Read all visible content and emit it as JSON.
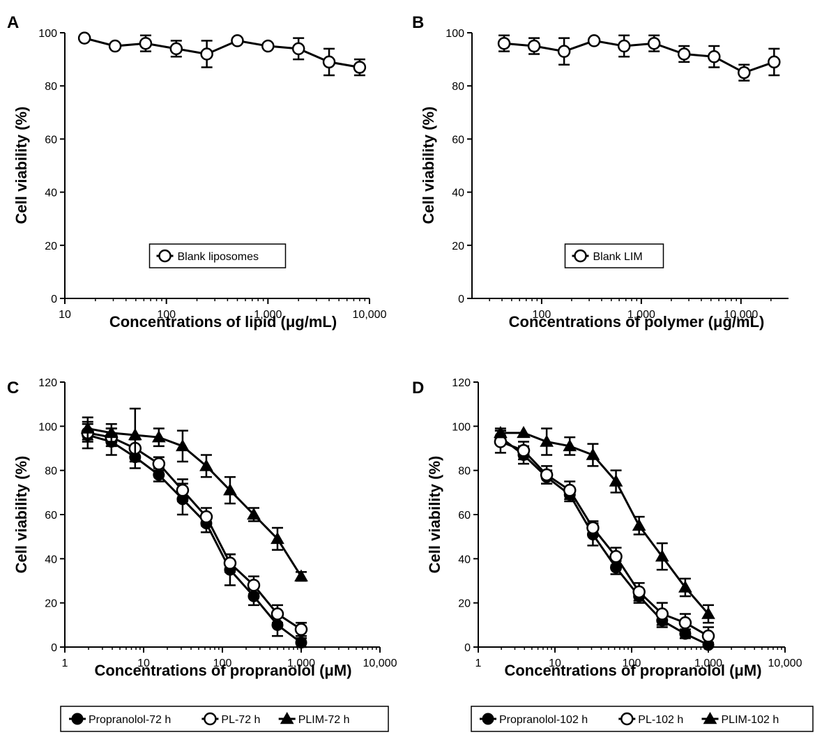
{
  "chart_data": [
    {
      "panel": "A",
      "type": "line",
      "xscale": "log",
      "xlim": [
        10,
        10000
      ],
      "ylim": [
        0,
        100
      ],
      "xticks": [
        10,
        100,
        1000,
        10000
      ],
      "xticklabels": [
        "10",
        "100",
        "1,000",
        "10,000"
      ],
      "yticks": [
        0,
        20,
        40,
        60,
        80,
        100
      ],
      "yticklabels": [
        "0",
        "20",
        "40",
        "60",
        "80",
        "100"
      ],
      "xlabel": "Concentrations of lipid (μg/mL)",
      "ylabel": "Cell viability (%)",
      "legend_position": "bottom-center-inside",
      "grid": false,
      "series": [
        {
          "name": "Blank liposomes",
          "marker": "open-circle",
          "x": [
            15.6,
            31.25,
            62.5,
            125,
            250,
            500,
            1000,
            2000,
            4000,
            8000
          ],
          "y": [
            98,
            95,
            96,
            94,
            92,
            97,
            95,
            94,
            89,
            87
          ],
          "err": [
            0,
            0,
            3,
            3,
            5,
            0,
            0,
            4,
            5,
            3
          ]
        }
      ]
    },
    {
      "panel": "B",
      "type": "line",
      "xscale": "log",
      "xlim": [
        20,
        30000
      ],
      "ylim": [
        0,
        100
      ],
      "xticks": [
        100,
        1000,
        10000
      ],
      "xticklabels": [
        "100",
        "1,000",
        "10,000"
      ],
      "yticks": [
        0,
        20,
        40,
        60,
        80,
        100
      ],
      "yticklabels": [
        "0",
        "20",
        "40",
        "60",
        "80",
        "100"
      ],
      "xlabel": "Concentrations of polymer (μg/mL)",
      "ylabel": "Cell viability (%)",
      "legend_position": "bottom-center-inside",
      "grid": false,
      "series": [
        {
          "name": "Blank LIM",
          "marker": "open-circle",
          "x": [
            42,
            84,
            168,
            336,
            672,
            1344,
            2688,
            5376,
            10752,
            21504
          ],
          "y": [
            96,
            95,
            93,
            97,
            95,
            96,
            92,
            91,
            85,
            89
          ],
          "err": [
            3,
            3,
            5,
            0,
            4,
            3,
            3,
            4,
            3,
            5
          ]
        }
      ]
    },
    {
      "panel": "C",
      "type": "line",
      "xscale": "log",
      "xlim": [
        1,
        10000
      ],
      "ylim": [
        0,
        120
      ],
      "xticks": [
        1,
        10,
        100,
        1000,
        10000
      ],
      "xticklabels": [
        "1",
        "10",
        "100",
        "1,000",
        "10,000"
      ],
      "yticks": [
        0,
        20,
        40,
        60,
        80,
        100,
        120
      ],
      "yticklabels": [
        "0",
        "20",
        "40",
        "60",
        "80",
        "100",
        "120"
      ],
      "xlabel": "Concentrations of propranolol (μM)",
      "ylabel": "Cell viability (%)",
      "legend_position": "below",
      "grid": false,
      "series": [
        {
          "name": "Propranolol-72 h",
          "marker": "filled-circle",
          "x": [
            1.95,
            3.9,
            7.8,
            15.6,
            31.25,
            62.5,
            125,
            250,
            500,
            1000
          ],
          "y": [
            96,
            93,
            86,
            78,
            67,
            56,
            35,
            23,
            10,
            2
          ],
          "err": [
            6,
            6,
            5,
            3,
            7,
            4,
            7,
            4,
            5,
            2
          ]
        },
        {
          "name": "PL-72 h",
          "marker": "open-circle",
          "x": [
            1.95,
            3.9,
            7.8,
            15.6,
            31.25,
            62.5,
            125,
            250,
            500,
            1000
          ],
          "y": [
            97,
            95,
            90,
            83,
            71,
            59,
            38,
            28,
            15,
            8
          ],
          "err": [
            4,
            4,
            4,
            3,
            5,
            4,
            4,
            4,
            4,
            3
          ]
        },
        {
          "name": "PLIM-72 h",
          "marker": "filled-triangle",
          "x": [
            1.95,
            3.9,
            7.8,
            15.6,
            31.25,
            62.5,
            125,
            250,
            500,
            1000
          ],
          "y": [
            99,
            97,
            96,
            95,
            91,
            82,
            71,
            60,
            49,
            32
          ],
          "err": [
            5,
            4,
            12,
            4,
            7,
            5,
            6,
            3,
            5,
            2
          ]
        }
      ]
    },
    {
      "panel": "D",
      "type": "line",
      "xscale": "log",
      "xlim": [
        1,
        10000
      ],
      "ylim": [
        0,
        120
      ],
      "xticks": [
        1,
        10,
        100,
        1000,
        10000
      ],
      "xticklabels": [
        "1",
        "10",
        "100",
        "1,000",
        "10,000"
      ],
      "yticks": [
        0,
        20,
        40,
        60,
        80,
        100,
        120
      ],
      "yticklabels": [
        "0",
        "20",
        "40",
        "60",
        "80",
        "100",
        "120"
      ],
      "xlabel": "Concentrations of propranolol (μM)",
      "ylabel": "Cell viability (%)",
      "legend_position": "below",
      "grid": false,
      "series": [
        {
          "name": "Propranolol-102 h",
          "marker": "filled-circle",
          "x": [
            1.95,
            3.9,
            7.8,
            15.6,
            31.25,
            62.5,
            125,
            250,
            500,
            1000
          ],
          "y": [
            95,
            87,
            77,
            69,
            51,
            36,
            23,
            12,
            6,
            1
          ],
          "err": [
            3,
            4,
            3,
            3,
            5,
            3,
            3,
            3,
            2,
            1
          ]
        },
        {
          "name": "PL-102 h",
          "marker": "open-circle",
          "x": [
            1.95,
            3.9,
            7.8,
            15.6,
            31.25,
            62.5,
            125,
            250,
            500,
            1000
          ],
          "y": [
            93,
            89,
            78,
            71,
            54,
            41,
            25,
            15,
            11,
            5
          ],
          "err": [
            5,
            4,
            4,
            4,
            3,
            4,
            4,
            5,
            4,
            4
          ]
        },
        {
          "name": "PLIM-102 h",
          "marker": "filled-triangle",
          "x": [
            1.95,
            3.9,
            7.8,
            15.6,
            31.25,
            62.5,
            125,
            250,
            500,
            1000
          ],
          "y": [
            97,
            97,
            93,
            91,
            87,
            75,
            55,
            41,
            27,
            15
          ],
          "err": [
            2,
            0,
            6,
            4,
            5,
            5,
            4,
            6,
            4,
            4
          ]
        }
      ]
    }
  ]
}
